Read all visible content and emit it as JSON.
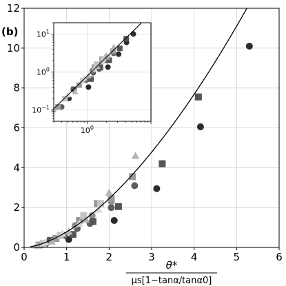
{
  "panel_label": "(b)",
  "chart_data": [
    {
      "type": "scatter",
      "title": "",
      "xlabel_numerator": "θ*",
      "xlabel_denominator": "μs[1−tanα/tanα0]",
      "ylabel": "",
      "xlim": [
        0,
        6
      ],
      "ylim": [
        0,
        12
      ],
      "x_ticks": [
        "0",
        "1",
        "2",
        "3",
        "4",
        "5",
        "6"
      ],
      "y_ticks": [
        "0",
        "2",
        "4",
        "6",
        "8",
        "10",
        "12"
      ],
      "grid": true,
      "fit_curve": {
        "form": "power",
        "coefficient": 0.78,
        "exponent": 1.65
      },
      "series": [
        {
          "marker": "circle",
          "color": "#2b2b2b",
          "points": [
            [
              0.52,
              0.2
            ],
            [
              1.05,
              0.4
            ],
            [
              2.12,
              1.35
            ],
            [
              3.12,
              2.95
            ],
            [
              4.15,
              6.05
            ],
            [
              5.3,
              10.1
            ]
          ]
        },
        {
          "marker": "circle",
          "color": "#5e5e5e",
          "points": [
            [
              0.4,
              0.12
            ],
            [
              0.95,
              0.6
            ],
            [
              1.25,
              0.95
            ],
            [
              1.55,
              1.2
            ],
            [
              2.05,
              2.0
            ],
            [
              2.6,
              3.1
            ]
          ]
        },
        {
          "marker": "circle",
          "color": "#8c8c8c",
          "points": [
            [
              0.6,
              0.35
            ],
            [
              1.2,
              1.1
            ],
            [
              1.6,
              1.6
            ],
            [
              2.05,
              2.3
            ]
          ]
        },
        {
          "marker": "square",
          "color": "#555555",
          "points": [
            [
              0.62,
              0.35
            ],
            [
              1.15,
              0.65
            ],
            [
              1.62,
              1.3
            ],
            [
              2.22,
              2.05
            ],
            [
              3.25,
              4.2
            ],
            [
              4.1,
              7.55
            ]
          ]
        },
        {
          "marker": "square",
          "color": "#9a9a9a",
          "points": [
            [
              0.35,
              0.12
            ],
            [
              0.75,
              0.45
            ],
            [
              1.3,
              1.35
            ],
            [
              1.72,
              2.2
            ],
            [
              2.05,
              2.45
            ],
            [
              2.55,
              3.55
            ]
          ]
        },
        {
          "marker": "square",
          "color": "#c4c4c4",
          "points": [
            [
              0.45,
              0.2
            ],
            [
              0.85,
              0.6
            ],
            [
              1.4,
              1.6
            ],
            [
              1.8,
              2.2
            ]
          ]
        },
        {
          "marker": "triangle",
          "color": "#b5b5b5",
          "points": [
            [
              0.3,
              0.1
            ],
            [
              0.65,
              0.3
            ],
            [
              1.05,
              0.8
            ],
            [
              1.45,
              1.4
            ],
            [
              2.0,
              2.75
            ],
            [
              2.62,
              4.6
            ]
          ]
        },
        {
          "marker": "triangle",
          "color": "#d6d6d6",
          "points": [
            [
              0.5,
              0.25
            ],
            [
              0.9,
              0.7
            ],
            [
              1.3,
              1.2
            ],
            [
              1.75,
              1.9
            ]
          ]
        }
      ]
    },
    {
      "type": "scatter",
      "role": "inset",
      "xscale": "log",
      "yscale": "log",
      "xlim": [
        0.3,
        10
      ],
      "ylim": [
        0.05,
        20
      ],
      "x_tick_labels": [
        {
          "value": 1,
          "mantissa": "10",
          "exponent": "0"
        }
      ],
      "y_tick_labels": [
        {
          "value": 0.1,
          "mantissa": "10",
          "exponent": "−1"
        },
        {
          "value": 1,
          "mantissa": "10",
          "exponent": "0"
        },
        {
          "value": 10,
          "mantissa": "10",
          "exponent": "1"
        }
      ],
      "grid": true,
      "fit_curve": {
        "form": "power",
        "coefficient": 0.78,
        "exponent": 1.65
      },
      "uses_main_series": true
    }
  ]
}
